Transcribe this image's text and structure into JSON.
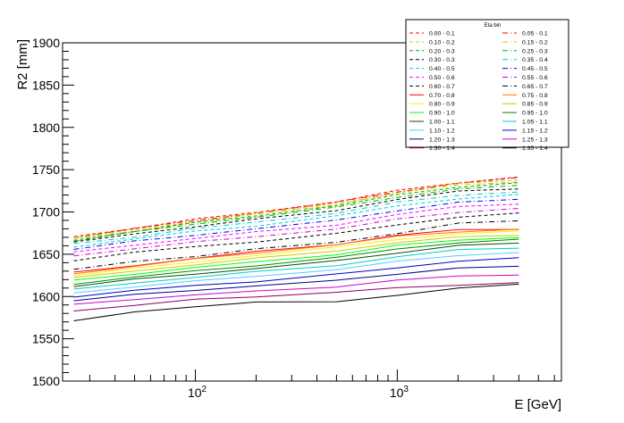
{
  "chart_data": {
    "type": "line",
    "title": "",
    "xlabel": "E [GeV]",
    "ylabel": "R2 [mm]",
    "xscale": "log",
    "xlim": [
      22,
      6500
    ],
    "ylim": [
      1500,
      1900
    ],
    "y_ticks": [
      "1500",
      "1550",
      "1600",
      "1650",
      "1700",
      "1750",
      "1800",
      "1850",
      "1900"
    ],
    "x_ticks": [
      {
        "value": 100,
        "base": "10",
        "exp": "2"
      },
      {
        "value": 1000,
        "base": "10",
        "exp": "3"
      }
    ],
    "grid": false,
    "legend": {
      "title": "Eta bin",
      "placement": "top-right",
      "columns": 2
    },
    "x_points": [
      25,
      50,
      100,
      200,
      500,
      1000,
      2000,
      4000
    ],
    "series": [
      {
        "name": "0.00 - 0.1",
        "color": "#ff0000",
        "dash": "dashed",
        "values": [
          1671,
          1681,
          1691,
          1700,
          1712,
          1725,
          1735,
          1741
        ]
      },
      {
        "name": "0.05 - 0.1",
        "color": "#ff0000",
        "dash": "dashdot",
        "values": [
          1670,
          1680,
          1690,
          1699,
          1711,
          1724,
          1734,
          1740
        ]
      },
      {
        "name": "0.10 - 0.2",
        "color": "#cccc00",
        "dash": "dashed",
        "values": [
          1669,
          1679,
          1689,
          1698,
          1710,
          1723,
          1733,
          1738
        ]
      },
      {
        "name": "0.15 - 0.2",
        "color": "#cccc00",
        "dash": "dashdot",
        "values": [
          1668,
          1678,
          1688,
          1697,
          1709,
          1722,
          1732,
          1736
        ]
      },
      {
        "name": "0.20 - 0.3",
        "color": "#00aa00",
        "dash": "dashed",
        "values": [
          1667,
          1677,
          1687,
          1696,
          1707,
          1720,
          1730,
          1734
        ]
      },
      {
        "name": "0.25 - 0.3",
        "color": "#00aa00",
        "dash": "dashdot",
        "values": [
          1666,
          1676,
          1686,
          1694,
          1705,
          1718,
          1727,
          1731
        ]
      },
      {
        "name": "0.30 - 0.3",
        "color": "#000000",
        "dash": "dashed",
        "values": [
          1664,
          1674,
          1683,
          1691,
          1702,
          1715,
          1724,
          1728
        ]
      },
      {
        "name": "0.35 - 0.4",
        "color": "#00cccc",
        "dash": "dashdot",
        "values": [
          1662,
          1671,
          1680,
          1688,
          1699,
          1711,
          1720,
          1724
        ]
      },
      {
        "name": "0.40 - 0.5",
        "color": "#00cccc",
        "dash": "dashed",
        "values": [
          1659,
          1668,
          1677,
          1684,
          1695,
          1707,
          1716,
          1720
        ]
      },
      {
        "name": "0.45 - 0.5",
        "color": "#0000ff",
        "dash": "dashdot",
        "values": [
          1656,
          1665,
          1673,
          1680,
          1690,
          1702,
          1711,
          1715
        ]
      },
      {
        "name": "0.50 - 0.6",
        "color": "#ff00ff",
        "dash": "dashed",
        "values": [
          1652,
          1661,
          1669,
          1676,
          1685,
          1697,
          1706,
          1710
        ]
      },
      {
        "name": "0.55 - 0.6",
        "color": "#cc00cc",
        "dash": "dashdot",
        "values": [
          1648,
          1657,
          1664,
          1671,
          1680,
          1691,
          1700,
          1704
        ]
      },
      {
        "name": "0.60 - 0.7",
        "color": "#000000",
        "dash": "dashed",
        "values": [
          1643,
          1652,
          1659,
          1665,
          1674,
          1685,
          1694,
          1698
        ]
      },
      {
        "name": "0.65 - 0.7",
        "color": "#000000",
        "dash": "dashdot",
        "values": [
          1632,
          1641,
          1648,
          1656,
          1664,
          1675,
          1686,
          1690
        ]
      },
      {
        "name": "0.70 - 0.8",
        "color": "#ff0000",
        "dash": "solid",
        "values": [
          1628,
          1637,
          1645,
          1653,
          1662,
          1672,
          1679,
          1680
        ]
      },
      {
        "name": "0.75 - 0.8",
        "color": "#ff7700",
        "dash": "solid",
        "values": [
          1627,
          1636,
          1644,
          1652,
          1661,
          1671,
          1677,
          1679
        ]
      },
      {
        "name": "0.80 - 0.9",
        "color": "#ffee00",
        "dash": "solid",
        "values": [
          1625,
          1633,
          1641,
          1649,
          1658,
          1668,
          1674,
          1677
        ]
      },
      {
        "name": "0.85 - 0.9",
        "color": "#cccc00",
        "dash": "solid",
        "values": [
          1622,
          1630,
          1638,
          1645,
          1654,
          1664,
          1670,
          1673
        ]
      },
      {
        "name": "0.90 - 1.0",
        "color": "#00ff00",
        "dash": "solid",
        "values": [
          1619,
          1627,
          1634,
          1641,
          1650,
          1660,
          1667,
          1670
        ]
      },
      {
        "name": "0.95 - 1.0",
        "color": "#008800",
        "dash": "solid",
        "values": [
          1615,
          1623,
          1630,
          1637,
          1646,
          1656,
          1664,
          1667
        ]
      },
      {
        "name": "1.00 - 1.1",
        "color": "#005500",
        "dash": "solid",
        "values": [
          1612,
          1620,
          1627,
          1633,
          1642,
          1652,
          1660,
          1663
        ]
      },
      {
        "name": "1.05 - 1.1",
        "color": "#00cccc",
        "dash": "solid",
        "values": [
          1608,
          1616,
          1623,
          1629,
          1637,
          1647,
          1655,
          1658
        ]
      },
      {
        "name": "1.10 - 1.2",
        "color": "#55ccff",
        "dash": "solid",
        "values": [
          1604,
          1612,
          1618,
          1624,
          1632,
          1641,
          1649,
          1652
        ]
      },
      {
        "name": "1.15 - 1.2",
        "color": "#0000cc",
        "dash": "solid",
        "values": [
          1600,
          1607,
          1613,
          1618,
          1626,
          1634,
          1642,
          1645
        ]
      },
      {
        "name": "1.20 - 1.3",
        "color": "#000088",
        "dash": "solid",
        "values": [
          1595,
          1602,
          1608,
          1612,
          1619,
          1627,
          1633,
          1636
        ]
      },
      {
        "name": "1.25 - 1.3",
        "color": "#cc00cc",
        "dash": "solid",
        "values": [
          1590,
          1597,
          1602,
          1606,
          1612,
          1619,
          1624,
          1626
        ]
      },
      {
        "name": "1.30 - 1.4",
        "color": "#880066",
        "dash": "solid",
        "values": [
          1583,
          1590,
          1596,
          1600,
          1605,
          1610,
          1614,
          1616
        ]
      },
      {
        "name": "1.35 - 1.4",
        "color": "#000000",
        "dash": "solid",
        "values": [
          1572,
          1581,
          1588,
          1594,
          1593,
          1602,
          1610,
          1614
        ]
      }
    ]
  }
}
